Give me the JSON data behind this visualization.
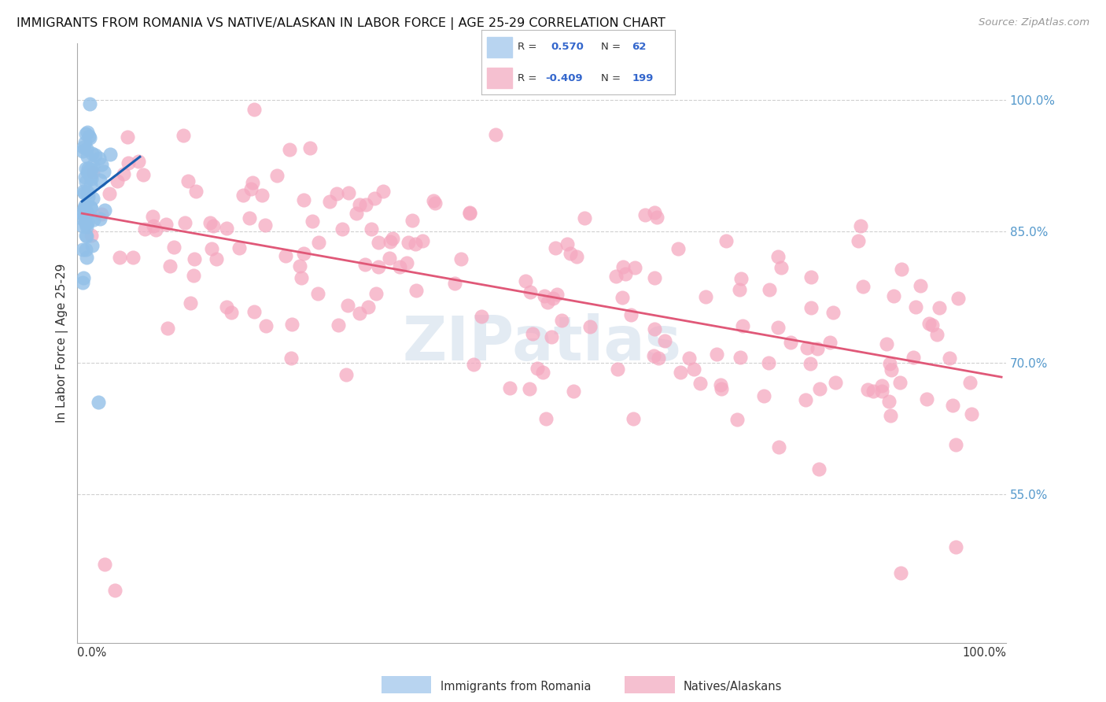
{
  "title": "IMMIGRANTS FROM ROMANIA VS NATIVE/ALASKAN IN LABOR FORCE | AGE 25-29 CORRELATION CHART",
  "source": "Source: ZipAtlas.com",
  "ylabel": "In Labor Force | Age 25-29",
  "ytick_labels": [
    "55.0%",
    "70.0%",
    "85.0%",
    "100.0%"
  ],
  "ytick_values": [
    0.55,
    0.7,
    0.85,
    1.0
  ],
  "legend_romania": "Immigrants from Romania",
  "legend_native": "Natives/Alaskans",
  "R_romania": "0.570",
  "N_romania": "62",
  "R_native": "-0.409",
  "N_native": "199",
  "color_romania": "#92c0e8",
  "color_native": "#f5a8c0",
  "line_color_romania": "#1a5fb0",
  "line_color_native": "#e05878",
  "legend_blue_fill": "#b8d4f0",
  "legend_pink_fill": "#f5c0d0",
  "watermark_color": "#c8d8e8",
  "watermark_alpha": 0.5,
  "ylim_low": 0.38,
  "ylim_high": 1.065
}
